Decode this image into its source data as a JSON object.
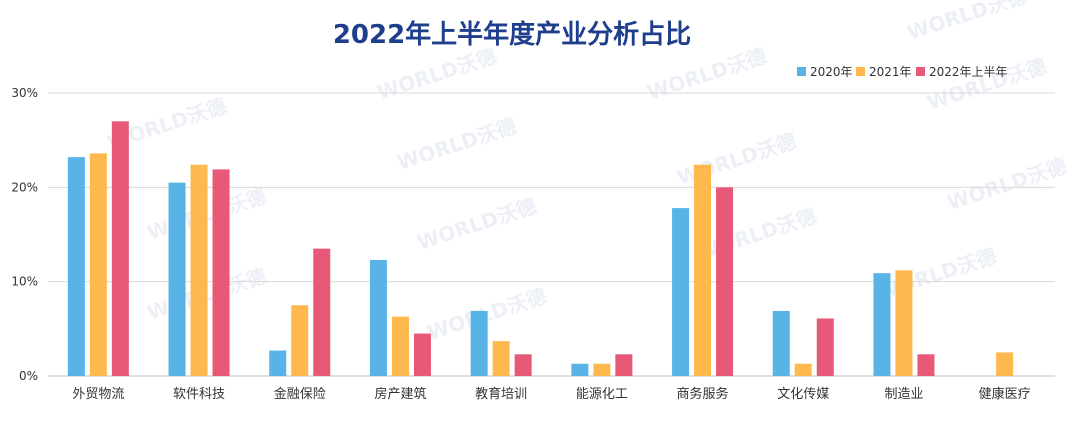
{
  "chart_data": {
    "type": "bar",
    "title": "2022年上半年度产业分析占比",
    "xlabel": "",
    "ylabel": "",
    "ylim": [
      0,
      30
    ],
    "yticks": [
      "0%",
      "10%",
      "20%",
      "30%"
    ],
    "ytick_values": [
      0,
      10,
      20,
      30
    ],
    "grid": true,
    "legend_position": "top-right",
    "categories": [
      "外贸物流",
      "软件科技",
      "金融保险",
      "房产建筑",
      "教育培训",
      "能源化工",
      "商务服务",
      "文化传媒",
      "制造业",
      "健康医疗"
    ],
    "series": [
      {
        "name": "2020年",
        "color": "#58b4e6",
        "values": [
          23.2,
          20.5,
          2.7,
          12.3,
          6.9,
          1.3,
          17.8,
          6.9,
          10.9,
          0
        ]
      },
      {
        "name": "2021年",
        "color": "#fdb94d",
        "values": [
          23.6,
          22.4,
          7.5,
          6.3,
          3.7,
          1.3,
          22.4,
          1.3,
          11.2,
          2.5
        ]
      },
      {
        "name": "2022年上半年",
        "color": "#e75977",
        "values": [
          27.0,
          21.9,
          13.5,
          4.5,
          2.3,
          2.3,
          20.0,
          6.1,
          2.3,
          0
        ]
      }
    ]
  },
  "watermark": "WORLD沃德"
}
